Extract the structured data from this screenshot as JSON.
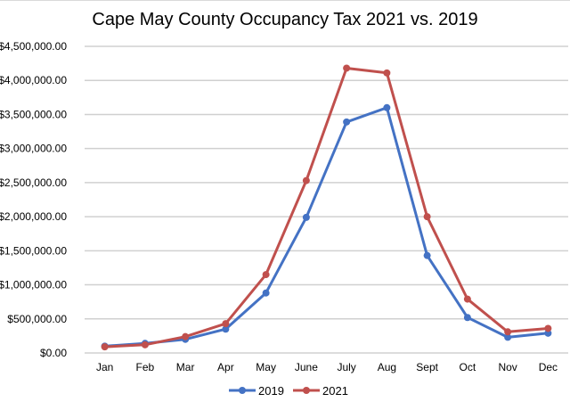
{
  "chart_data": {
    "type": "line",
    "title": "Cape May County Occupancy Tax 2021 vs. 2019",
    "xlabel": "",
    "ylabel": "",
    "categories": [
      "Jan",
      "Feb",
      "Mar",
      "Apr",
      "May",
      "June",
      "July",
      "Aug",
      "Sept",
      "Oct",
      "Nov",
      "Dec"
    ],
    "ylim": [
      0,
      4500000
    ],
    "yticks": [
      0,
      500000,
      1000000,
      1500000,
      2000000,
      2500000,
      3000000,
      3500000,
      4000000,
      4500000
    ],
    "ytick_labels": [
      "$0.00",
      "$500,000.00",
      "$1,000,000.00",
      "$1,500,000.00",
      "$2,000,000.00",
      "$2,500,000.00",
      "$3,000,000.00",
      "$3,500,000.00",
      "$4,000,000.00",
      "$4,500,000.00"
    ],
    "grid": true,
    "legend_position": "bottom",
    "series": [
      {
        "name": "2019",
        "color": "#4472c4",
        "values": [
          100000,
          140000,
          200000,
          350000,
          880000,
          1990000,
          3390000,
          3600000,
          1430000,
          520000,
          230000,
          290000
        ]
      },
      {
        "name": "2021",
        "color": "#c0504d",
        "values": [
          90000,
          120000,
          240000,
          430000,
          1150000,
          2530000,
          4180000,
          4110000,
          2000000,
          790000,
          310000,
          360000
        ]
      }
    ]
  }
}
